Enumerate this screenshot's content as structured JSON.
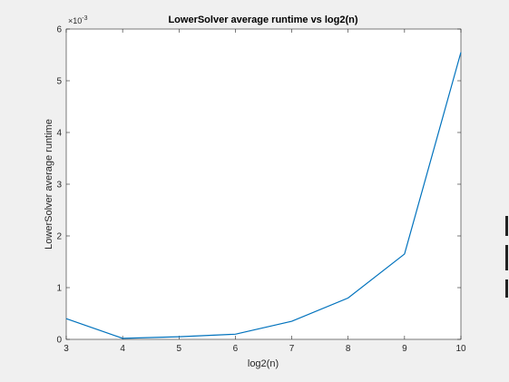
{
  "chart_data": {
    "type": "line",
    "title": "LowerSolver average runtime vs log2(n)",
    "xlabel": "log2(n)",
    "ylabel": "LowerSolver average runtime",
    "y_exponent_label": "×10",
    "y_exponent_power": "-3",
    "xlim": [
      3,
      10
    ],
    "ylim": [
      0,
      6
    ],
    "x_ticks": [
      3,
      4,
      5,
      6,
      7,
      8,
      9,
      10
    ],
    "y_ticks": [
      0,
      1,
      2,
      3,
      4,
      5,
      6
    ],
    "grid": false,
    "line_color": "#0072bd",
    "series": [
      {
        "x": [
          3,
          4,
          5,
          6,
          7,
          8,
          9,
          10
        ],
        "y": [
          0.4,
          0.02,
          0.05,
          0.1,
          0.35,
          0.8,
          1.65,
          5.55
        ]
      }
    ]
  }
}
